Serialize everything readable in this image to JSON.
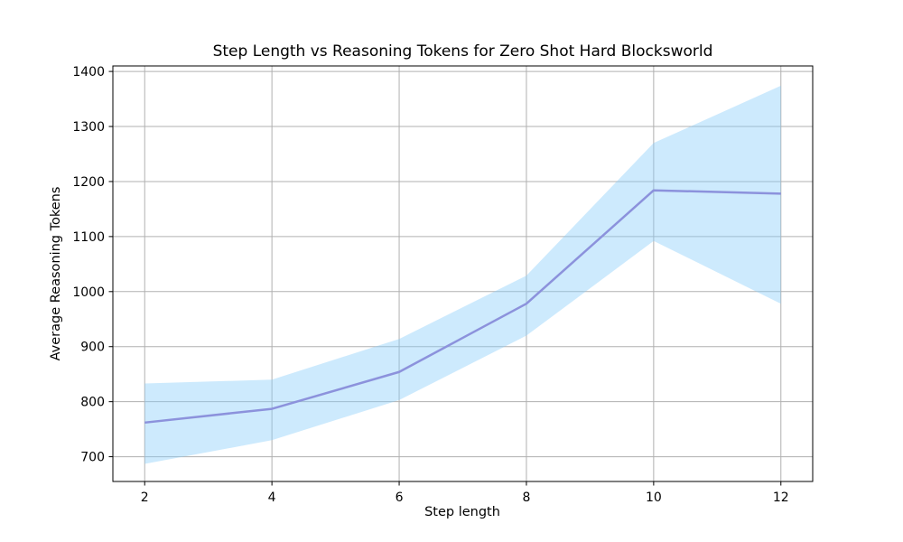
{
  "chart_data": {
    "type": "line",
    "title": "Step Length vs Reasoning Tokens for Zero Shot Hard Blocksworld",
    "xlabel": "Step length",
    "ylabel": "Average Reasoning Tokens",
    "x": [
      2,
      4,
      6,
      8,
      10,
      12
    ],
    "series": [
      {
        "name": "mean-reasoning-tokens",
        "values": [
          762,
          787,
          854,
          978,
          1184,
          1178
        ]
      }
    ],
    "band": {
      "name": "confidence-band",
      "lower": [
        687,
        730,
        803,
        920,
        1092,
        978
      ],
      "upper": [
        833,
        840,
        914,
        1029,
        1270,
        1374
      ]
    },
    "xticks": [
      2,
      4,
      6,
      8,
      10,
      12
    ],
    "yticks": [
      700,
      800,
      900,
      1000,
      1100,
      1200,
      1300,
      1400
    ],
    "xlim": [
      1.5,
      12.5
    ],
    "ylim": [
      655,
      1410
    ],
    "grid": true,
    "legend": "none",
    "colors": {
      "line": "#8c92dc",
      "band": "rgba(135,206,250,0.42)",
      "grid": "#b0b0b0",
      "spine": "#000000",
      "text": "#000000"
    }
  }
}
